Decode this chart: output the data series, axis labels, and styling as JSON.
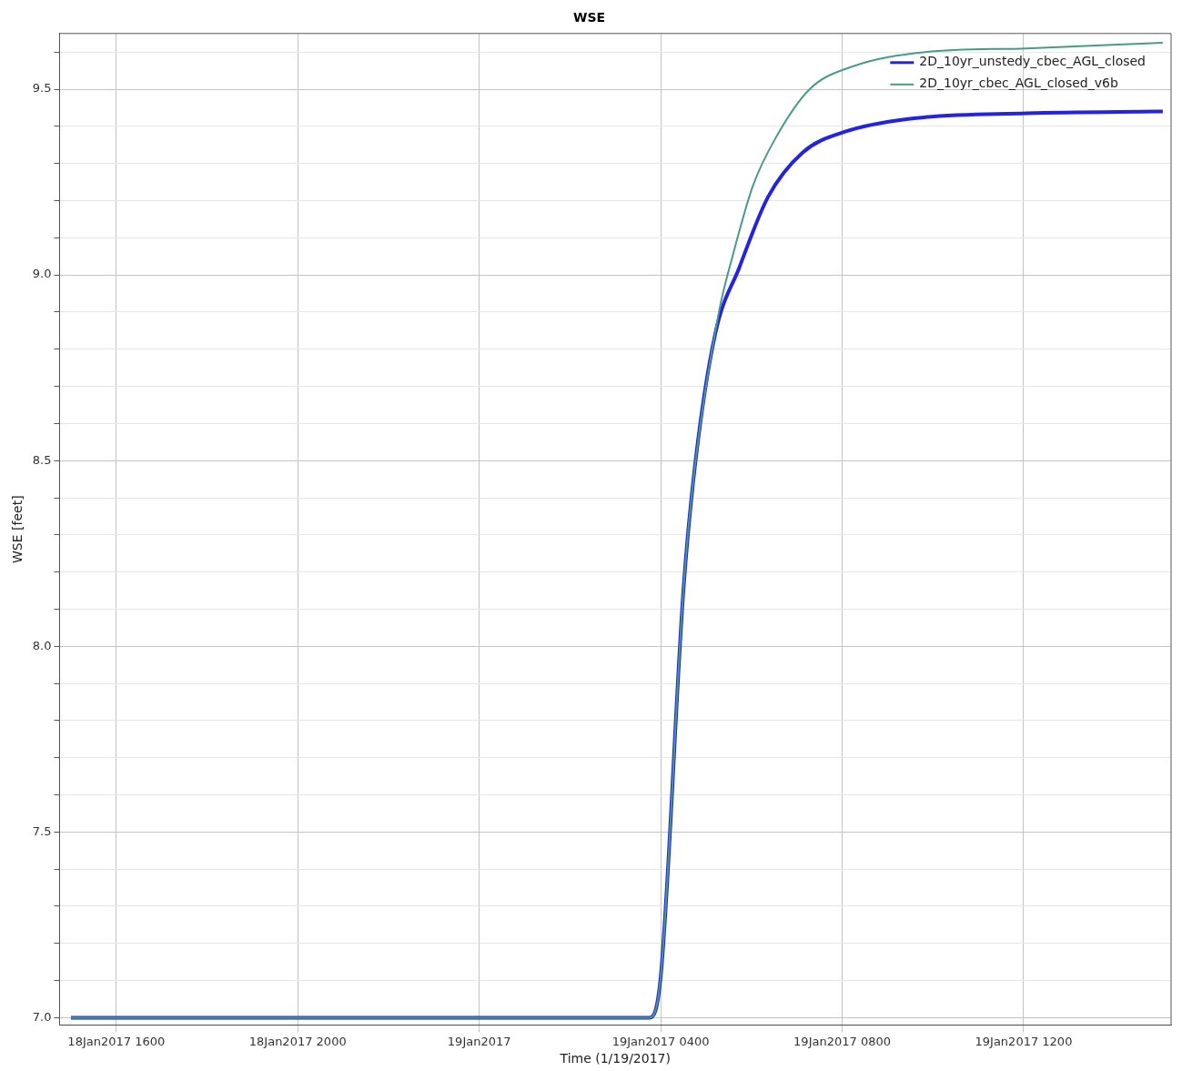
{
  "chart_data": {
    "type": "line",
    "title": "WSE",
    "xlabel": "Time (1/19/2017)",
    "ylabel": "WSE [feet]",
    "xlim": [
      "2017-01-18T14:45",
      "2017-01-19T15:15"
    ],
    "xticks": [
      {
        "value": "2017-01-18T16:00",
        "label": "18Jan2017 1600"
      },
      {
        "value": "2017-01-18T20:00",
        "label": "18Jan2017 2000"
      },
      {
        "value": "2017-01-19T00:00",
        "label": "19Jan2017"
      },
      {
        "value": "2017-01-19T04:00",
        "label": "19Jan2017 0400"
      },
      {
        "value": "2017-01-19T08:00",
        "label": "19Jan2017 0800"
      },
      {
        "value": "2017-01-19T12:00",
        "label": "19Jan2017 1200"
      }
    ],
    "ylim": [
      6.98,
      9.65
    ],
    "yticks": [
      {
        "value": 7.0,
        "label": "7.0"
      },
      {
        "value": 7.1,
        "label": null
      },
      {
        "value": 7.2,
        "label": null
      },
      {
        "value": 7.3,
        "label": null
      },
      {
        "value": 7.4,
        "label": null
      },
      {
        "value": 7.5,
        "label": "7.5"
      },
      {
        "value": 7.6,
        "label": null
      },
      {
        "value": 7.7,
        "label": null
      },
      {
        "value": 7.8,
        "label": null
      },
      {
        "value": 7.9,
        "label": null
      },
      {
        "value": 8.0,
        "label": "8.0"
      },
      {
        "value": 8.1,
        "label": null
      },
      {
        "value": 8.2,
        "label": null
      },
      {
        "value": 8.3,
        "label": null
      },
      {
        "value": 8.4,
        "label": null
      },
      {
        "value": 8.5,
        "label": "8.5"
      },
      {
        "value": 8.6,
        "label": null
      },
      {
        "value": 8.7,
        "label": null
      },
      {
        "value": 8.8,
        "label": null
      },
      {
        "value": 8.9,
        "label": null
      },
      {
        "value": 9.0,
        "label": "9.0"
      },
      {
        "value": 9.1,
        "label": null
      },
      {
        "value": 9.2,
        "label": null
      },
      {
        "value": 9.3,
        "label": null
      },
      {
        "value": 9.4,
        "label": null
      },
      {
        "value": 9.5,
        "label": "9.5"
      },
      {
        "value": 9.6,
        "label": null
      }
    ],
    "grid": true,
    "legend": "top right",
    "marker": "none",
    "line_style": "solid",
    "series": [
      {
        "name": "2D_10yr_unstedy_cbec_AGL_closed",
        "color": "#2323e0",
        "x": [
          "2017-01-18T15:00",
          "2017-01-19T03:45",
          "2017-01-19T04:00",
          "2017-01-19T04:30",
          "2017-01-19T04:45",
          "2017-01-19T05:12",
          "2017-01-19T05:44",
          "2017-01-19T06:22",
          "2017-01-19T07:08",
          "2017-01-19T08:03",
          "2017-01-19T09:27",
          "2017-01-19T12:04",
          "2017-01-19T15:04"
        ],
        "values": [
          7.0,
          7.0,
          7.11,
          8.15,
          8.48,
          8.84,
          9.02,
          9.21,
          9.33,
          9.385,
          9.42,
          9.435,
          9.44
        ]
      },
      {
        "name": "2D_10yr_cbec_AGL_closed_v6b",
        "color": "#4a9a8a",
        "x": [
          "2017-01-18T15:00",
          "2017-01-19T03:45",
          "2017-01-19T04:00",
          "2017-01-19T04:30",
          "2017-01-19T04:45",
          "2017-01-19T05:17",
          "2017-01-19T05:35",
          "2017-01-19T06:02",
          "2017-01-19T06:31",
          "2017-01-19T07:17",
          "2017-01-19T08:12",
          "2017-01-19T09:50",
          "2017-01-19T12:04",
          "2017-01-19T15:04"
        ],
        "values": [
          7.0,
          7.0,
          7.11,
          8.15,
          8.48,
          8.9,
          9.05,
          9.24,
          9.365,
          9.5,
          9.56,
          9.6,
          9.61,
          9.625
        ]
      }
    ]
  }
}
